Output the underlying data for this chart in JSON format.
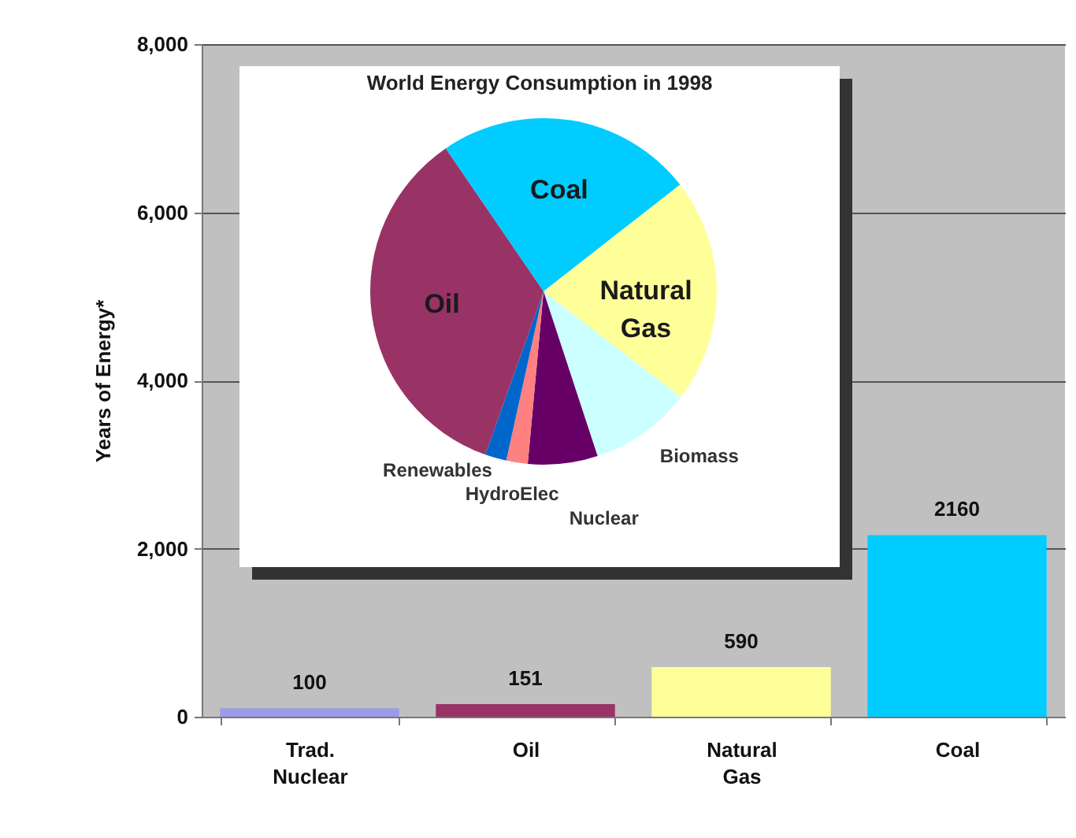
{
  "chart_data": [
    {
      "type": "bar",
      "categories": [
        "Trad. Nuclear",
        "Oil",
        "Natural Gas",
        "Coal"
      ],
      "values": [
        100,
        151,
        590,
        2160
      ],
      "colors": [
        "#9c9ce6",
        "#993366",
        "#ffff99",
        "#00ccff"
      ],
      "ylabel": "Years of Energy*",
      "ylim": [
        0,
        8000
      ],
      "yticks": [
        0,
        {
          "value": 2000,
          "label": "2,000"
        },
        {
          "value": 4000,
          "label": "4,000"
        },
        {
          "value": 6000,
          "label": "6,000"
        },
        {
          "value": 8000,
          "label": "8,000"
        }
      ],
      "grid": "y",
      "data_labels": true
    },
    {
      "type": "pie",
      "title": "World Energy Consumption in 1998",
      "categories": [
        "Coal",
        "Natural Gas",
        "Biomass",
        "Nuclear",
        "HydroElec",
        "Renewables",
        "Oil"
      ],
      "values": [
        24,
        21,
        9.5,
        6.5,
        2,
        2,
        35
      ],
      "colors": [
        "#00ccff",
        "#ffff99",
        "#ccffff",
        "#660066",
        "#ff8080",
        "#0066cc",
        "#993366"
      ]
    }
  ]
}
